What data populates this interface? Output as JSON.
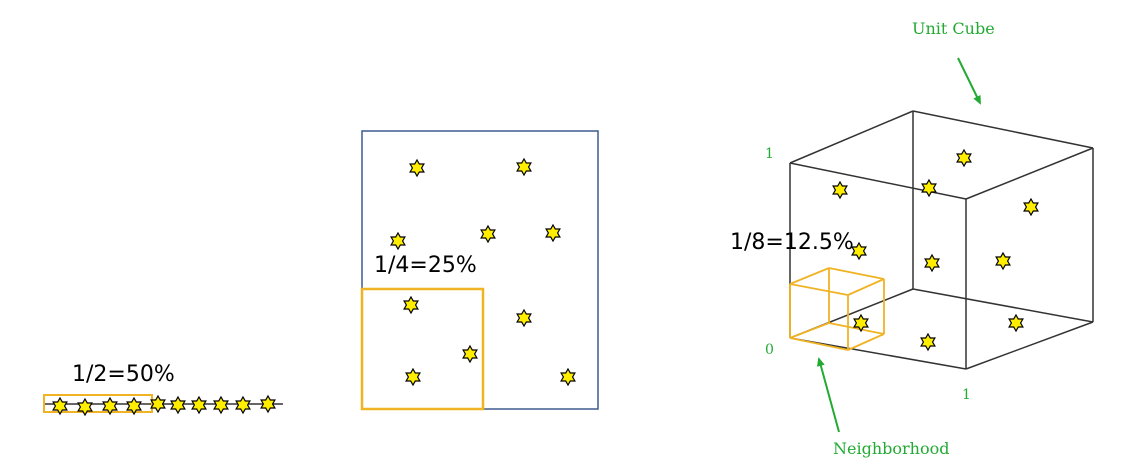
{
  "colors": {
    "star_fill": "#ffee00",
    "star_stroke": "#000000",
    "neighborhood": "#f0b323",
    "square_border": "#3f5a8f",
    "cube_edge": "#333333",
    "annotation": "#22aa33"
  },
  "panel_1d": {
    "fraction_label": "1/2=50%",
    "neighborhood_fraction": 0.5,
    "point_count": 10
  },
  "panel_2d": {
    "fraction_label": "1/4=25%",
    "neighborhood_fraction": 0.25,
    "point_count": 10
  },
  "panel_3d": {
    "fraction_label": "1/8=12.5%",
    "neighborhood_fraction": 0.125,
    "point_count": 10,
    "title": "Unit Cube",
    "neighborhood_label": "Neighborhood",
    "axis_labels": {
      "top": "1",
      "origin": "0",
      "right": "1"
    }
  }
}
